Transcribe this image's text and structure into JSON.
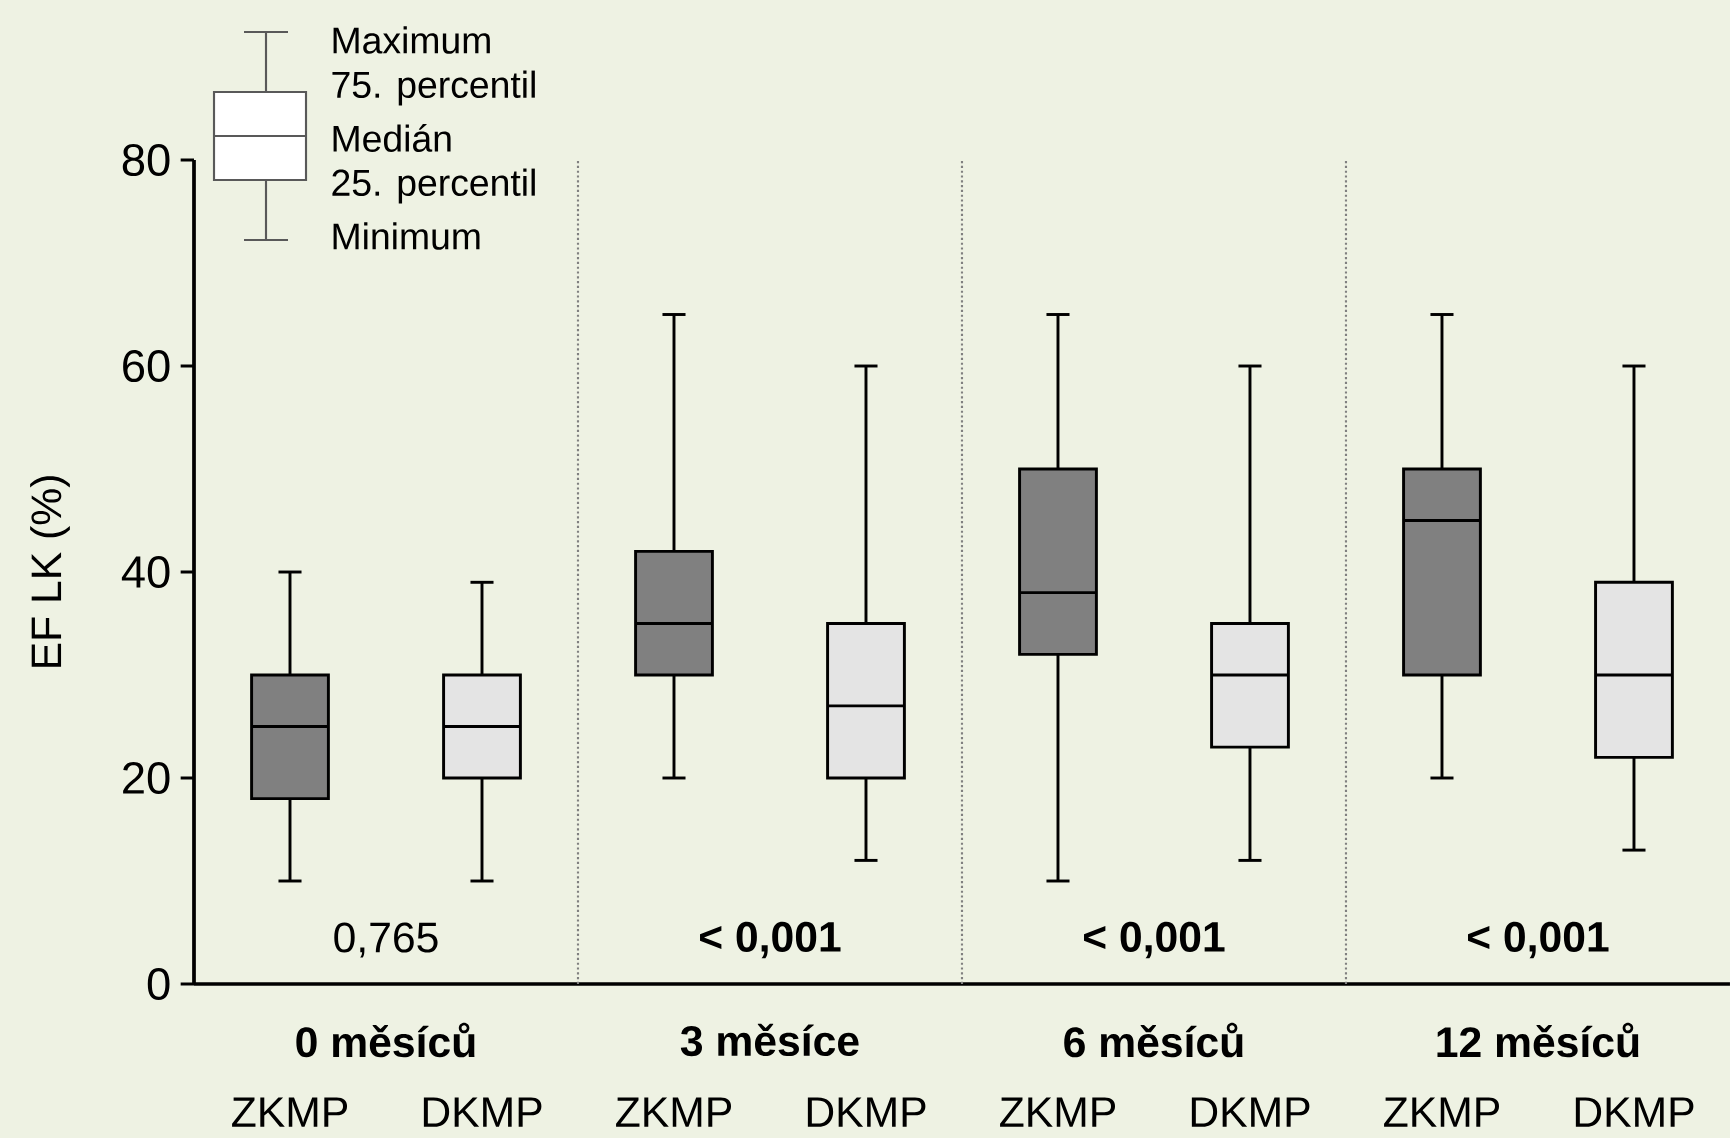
{
  "chart_data": {
    "type": "box",
    "ylabel": "EF LK (%)",
    "categories": [
      "ZKMP",
      "DKMP",
      "ZKMP",
      "DKMP",
      "ZKMP",
      "DKMP",
      "ZKMP",
      "DKMP"
    ],
    "boxes": [
      {
        "low": 10,
        "q1": 18,
        "median": 25,
        "q3": 30,
        "high": 40
      },
      {
        "low": 10,
        "q1": 20,
        "median": 25,
        "q3": 30,
        "high": 39
      },
      {
        "low": 20,
        "q1": 30,
        "median": 35,
        "q3": 42,
        "high": 65
      },
      {
        "low": 12,
        "q1": 20,
        "median": 27,
        "q3": 35,
        "high": 60
      },
      {
        "low": 10,
        "q1": 32,
        "median": 38,
        "q3": 50,
        "high": 65
      },
      {
        "low": 12,
        "q1": 23,
        "median": 30,
        "q3": 35,
        "high": 60
      },
      {
        "low": 20,
        "q1": 30,
        "median": 45,
        "q3": 50,
        "high": 65
      },
      {
        "low": 13,
        "q1": 22,
        "median": 30,
        "q3": 39,
        "high": 60
      }
    ],
    "colors": [
      "#808080",
      "#e4e4e4",
      "#808080",
      "#e4e4e4",
      "#808080",
      "#e4e4e4",
      "#808080",
      "#e4e4e4"
    ],
    "ylim": [
      0,
      80
    ],
    "yticks": [
      0,
      20,
      40,
      60,
      80
    ],
    "annotations": [
      "0 měsíců",
      "3 měsíce",
      "6 měsíců",
      "12 měsíců",
      "0,765",
      "< 0,001",
      "< 0,001",
      "< 0,001",
      "Maximum",
      "75. percentil",
      "Medián",
      "25. percentil",
      "Minimum"
    ]
  }
}
